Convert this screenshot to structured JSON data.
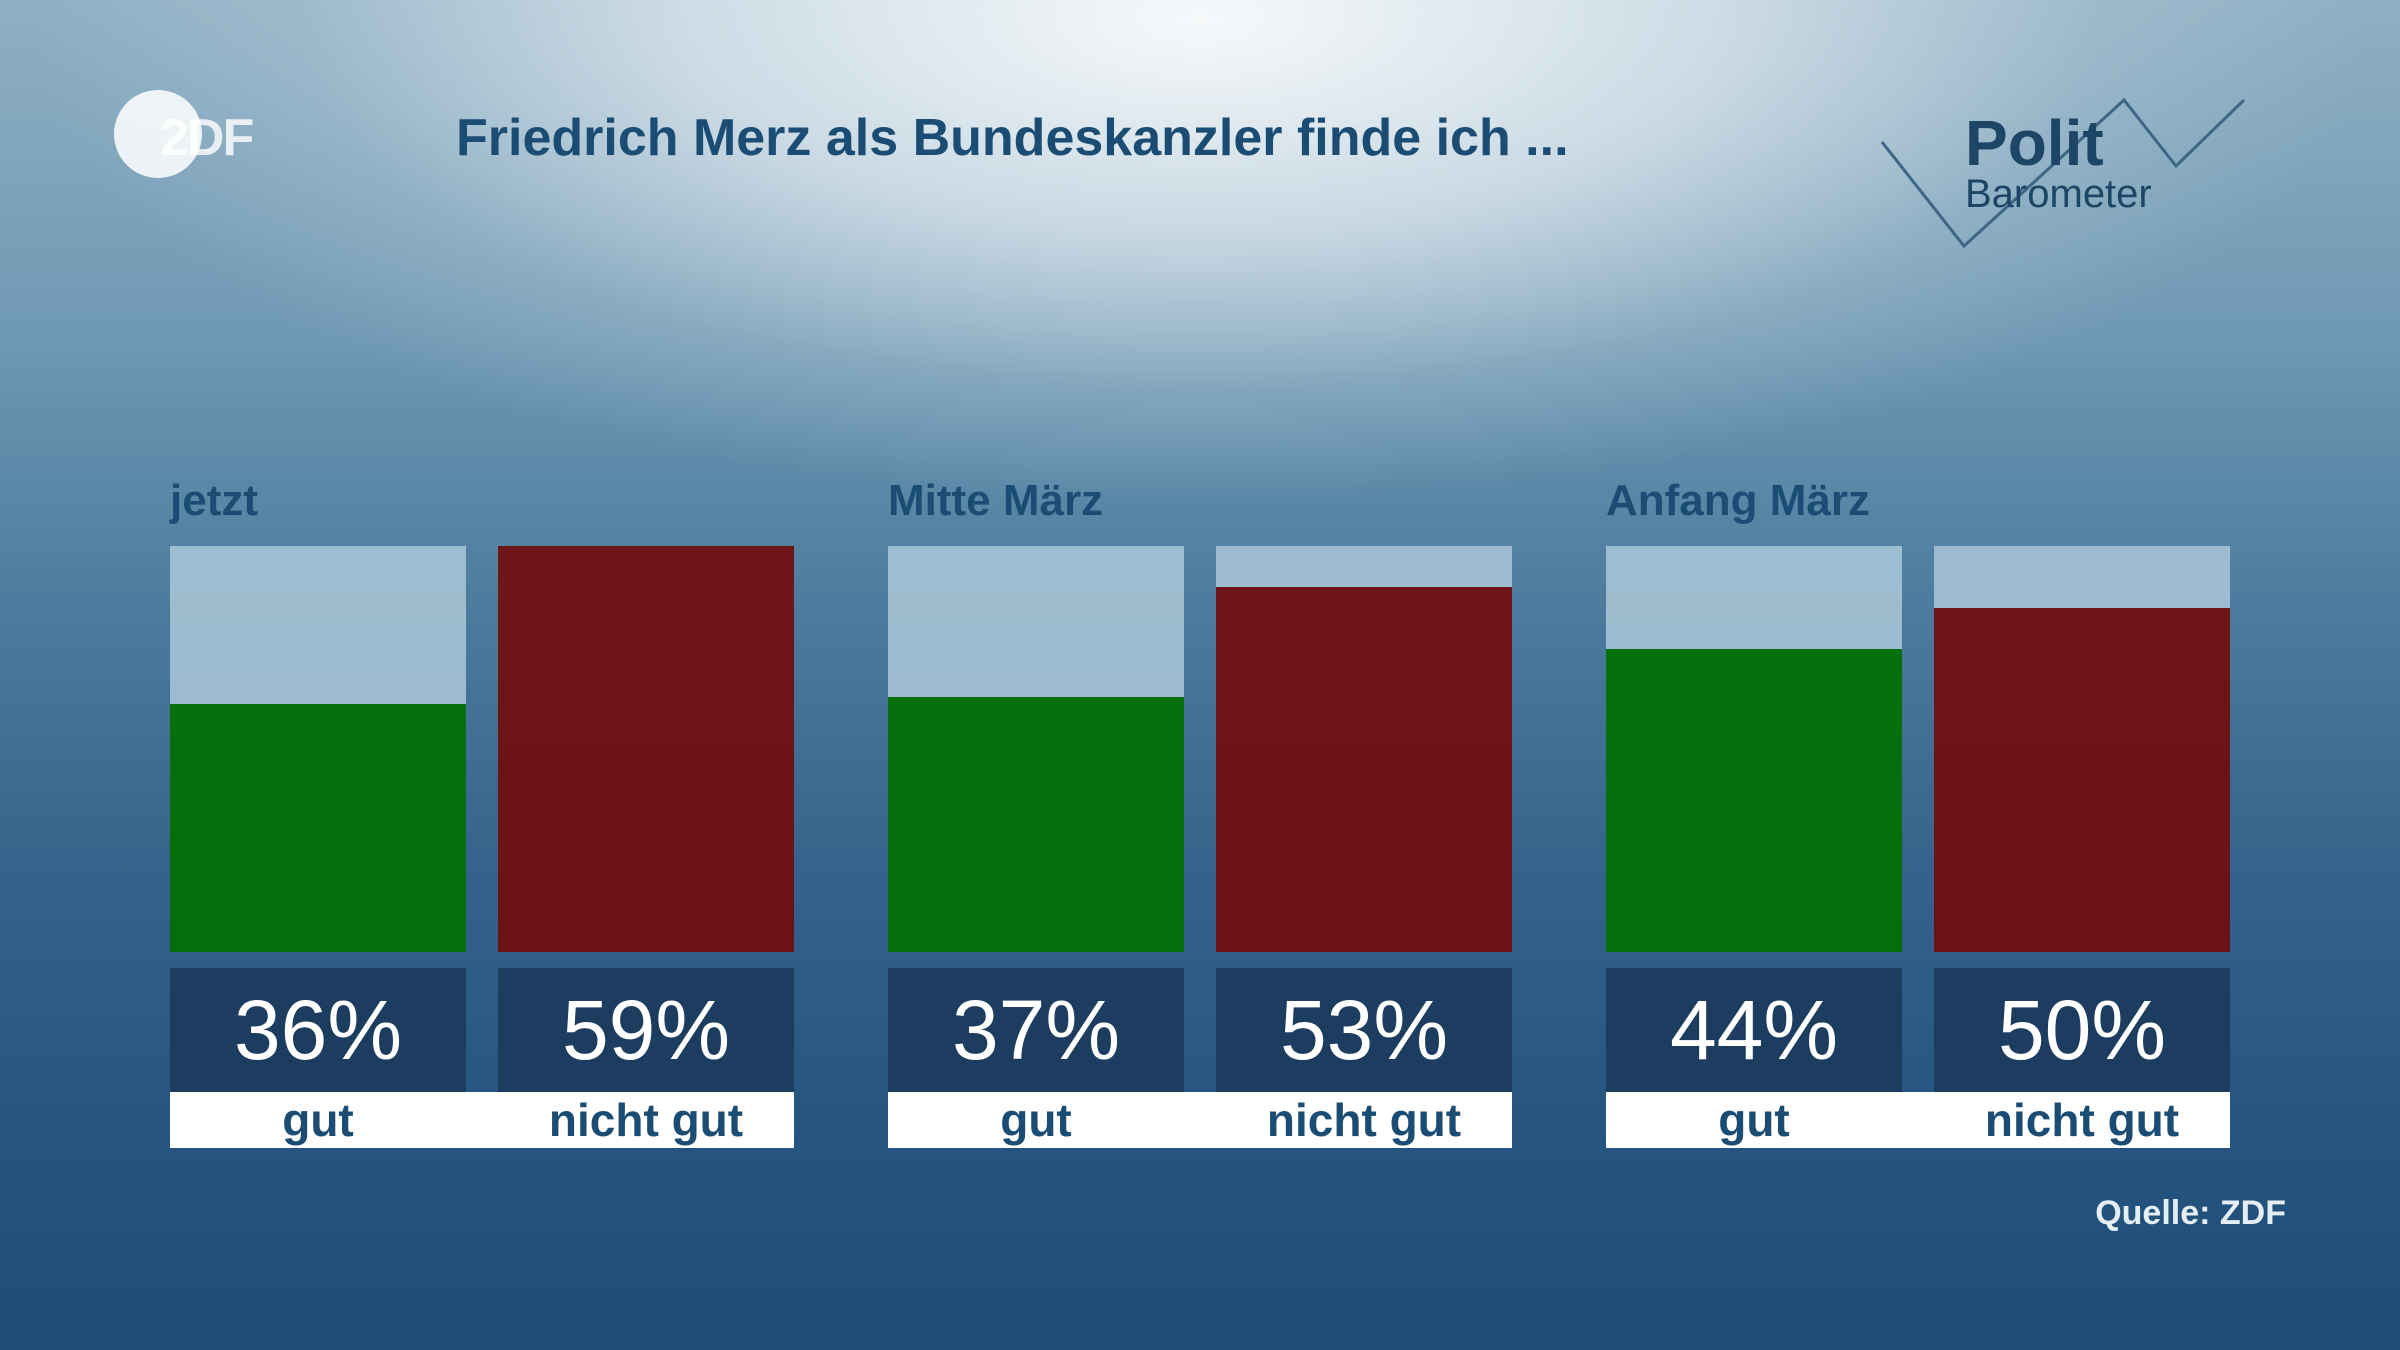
{
  "header": {
    "title": "Friedrich Merz als Bundeskanzler finde ich ...",
    "logo_text": "2DF",
    "brand_line1": "Polit",
    "brand_line2": "Barometer"
  },
  "source": "Quelle: ZDF",
  "colors": {
    "gut": "#027002",
    "nicht_gut": "#720c0c",
    "value_box": "#1d3d60",
    "track": "#a4c2d4"
  },
  "chart_data": {
    "type": "bar",
    "title": "Friedrich Merz als Bundeskanzler finde ich ...",
    "unit": "%",
    "ylim": [
      0,
      59
    ],
    "groups": [
      {
        "label": "jetzt",
        "bars": [
          {
            "category": "gut",
            "value": 36,
            "display": "36%"
          },
          {
            "category": "nicht gut",
            "value": 59,
            "display": "59%"
          }
        ]
      },
      {
        "label": "Mitte März",
        "bars": [
          {
            "category": "gut",
            "value": 37,
            "display": "37%"
          },
          {
            "category": "nicht gut",
            "value": 53,
            "display": "53%"
          }
        ]
      },
      {
        "label": "Anfang März",
        "bars": [
          {
            "category": "gut",
            "value": 44,
            "display": "44%"
          },
          {
            "category": "nicht gut",
            "value": 50,
            "display": "50%"
          }
        ]
      }
    ]
  }
}
